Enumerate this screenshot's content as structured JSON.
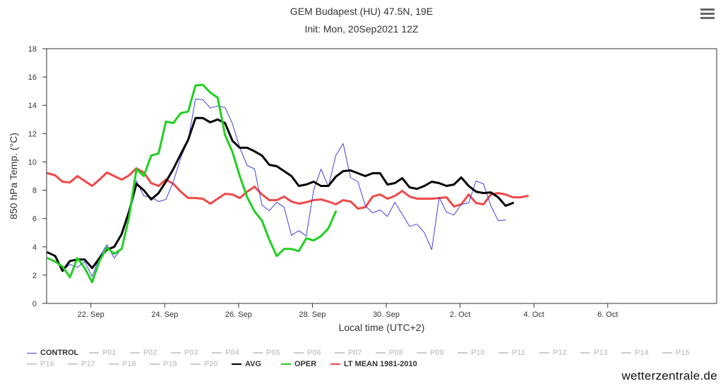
{
  "header": {
    "title": "GEM Budapest (HU) 47.5N, 19E",
    "subtitle": "Init: Mon, 20Sep2021 12Z",
    "menu_icon": "hamburger-menu-icon"
  },
  "credit": "wetterzentrale.de",
  "chart_data": {
    "type": "line",
    "title": "GEM Budapest (HU) 47.5N, 19E",
    "subtitle": "Init: Mon, 20Sep2021 12Z",
    "xlabel": "Local time (UTC+2)",
    "ylabel": "850 hPa Temp. (°C)",
    "ylim": [
      0,
      18
    ],
    "yticks": [
      "0",
      "2",
      "4",
      "6",
      "8",
      "10",
      "12",
      "14",
      "16",
      "18"
    ],
    "xlim": [
      -1.2,
      16.95
    ],
    "xticks": [
      {
        "x": 0,
        "label": "22. Sep"
      },
      {
        "x": 2,
        "label": "24. Sep"
      },
      {
        "x": 4,
        "label": "26. Sep"
      },
      {
        "x": 6,
        "label": "28. Sep"
      },
      {
        "x": 8,
        "label": "30. Sep"
      },
      {
        "x": 10,
        "label": "2. Oct"
      },
      {
        "x": 12,
        "label": "4. Oct"
      },
      {
        "x": 14,
        "label": "6. Oct"
      }
    ],
    "x_start": -1.167,
    "x_step": 0.2,
    "series": [
      {
        "name": "LT MEAN 1981-2010",
        "color": "#f04848",
        "width": 3,
        "values": [
          9.2,
          9.05,
          8.6,
          8.55,
          9.0,
          8.65,
          8.3,
          8.75,
          9.25,
          9.0,
          8.75,
          9.05,
          9.55,
          9.25,
          8.5,
          8.3,
          8.75,
          8.45,
          7.9,
          7.45,
          7.45,
          7.4,
          7.05,
          7.4,
          7.75,
          7.7,
          7.45,
          7.9,
          8.25,
          7.7,
          7.3,
          7.3,
          7.55,
          7.2,
          7.05,
          7.15,
          7.3,
          7.35,
          7.2,
          7.0,
          7.3,
          7.2,
          6.7,
          6.8,
          7.55,
          7.7,
          7.4,
          7.6,
          7.95,
          7.55,
          7.4,
          7.4,
          7.4,
          7.45,
          7.5,
          6.85,
          7.0,
          7.7,
          7.1,
          7.0,
          7.7,
          7.8,
          7.7,
          7.5,
          7.5,
          7.6
        ]
      },
      {
        "name": "CONTROL",
        "color": "#4040e0",
        "width": 1,
        "values": [
          3.55,
          3.4,
          2.35,
          2.75,
          2.55,
          2.95,
          1.9,
          3.3,
          4.15,
          3.2,
          3.9,
          6.0,
          8.65,
          7.6,
          7.5,
          7.2,
          7.35,
          8.6,
          10.3,
          11.5,
          14.45,
          14.4,
          13.8,
          13.95,
          13.85,
          12.7,
          11.0,
          9.75,
          9.5,
          6.95,
          6.55,
          7.15,
          6.8,
          4.8,
          5.15,
          4.75,
          8.0,
          9.5,
          8.25,
          10.45,
          11.3,
          8.9,
          8.6,
          6.9,
          6.4,
          6.6,
          6.15,
          7.15,
          6.3,
          5.45,
          5.6,
          5.0,
          3.8,
          7.5,
          6.45,
          6.25,
          7.0,
          7.1,
          8.65,
          8.45,
          6.9,
          5.85,
          5.9
        ]
      },
      {
        "name": "AVG",
        "color": "#000000",
        "width": 3,
        "values": [
          3.6,
          3.35,
          2.3,
          3.0,
          3.1,
          3.1,
          2.5,
          3.2,
          3.8,
          4.0,
          4.9,
          6.5,
          8.45,
          8.0,
          7.35,
          7.8,
          8.6,
          9.5,
          10.55,
          11.55,
          13.1,
          13.1,
          12.8,
          13.0,
          12.75,
          11.5,
          11.0,
          11.0,
          10.75,
          10.45,
          9.8,
          9.7,
          9.35,
          9.0,
          8.3,
          8.4,
          8.6,
          8.3,
          8.3,
          8.95,
          9.35,
          9.4,
          9.2,
          9.0,
          9.2,
          9.2,
          8.4,
          8.5,
          8.85,
          8.2,
          8.1,
          8.3,
          8.6,
          8.5,
          8.3,
          8.4,
          8.9,
          8.3,
          7.9,
          7.8,
          7.85,
          7.5,
          6.9,
          7.1
        ]
      },
      {
        "name": "OPER",
        "color": "#20d020",
        "width": 3,
        "values": [
          3.2,
          2.95,
          2.6,
          1.85,
          3.2,
          2.5,
          1.5,
          3.0,
          3.95,
          3.5,
          3.85,
          6.1,
          9.5,
          9.0,
          10.45,
          10.6,
          12.85,
          12.75,
          13.45,
          13.55,
          15.4,
          15.45,
          14.9,
          14.55,
          11.9,
          10.7,
          9.0,
          7.5,
          6.5,
          5.85,
          4.5,
          3.35,
          3.85,
          3.85,
          3.7,
          4.6,
          4.45,
          4.75,
          5.3,
          6.5
        ]
      }
    ],
    "legend": {
      "placement": "bottom",
      "entries": [
        {
          "label": "CONTROL",
          "color": "#4040e0",
          "active": true
        },
        {
          "label": "P01",
          "color": "#cccccc",
          "active": false
        },
        {
          "label": "P02",
          "color": "#cccccc",
          "active": false
        },
        {
          "label": "P03",
          "color": "#cccccc",
          "active": false
        },
        {
          "label": "P04",
          "color": "#cccccc",
          "active": false
        },
        {
          "label": "P05",
          "color": "#cccccc",
          "active": false
        },
        {
          "label": "P06",
          "color": "#cccccc",
          "active": false
        },
        {
          "label": "P07",
          "color": "#cccccc",
          "active": false
        },
        {
          "label": "P08",
          "color": "#cccccc",
          "active": false
        },
        {
          "label": "P09",
          "color": "#cccccc",
          "active": false
        },
        {
          "label": "P10",
          "color": "#cccccc",
          "active": false
        },
        {
          "label": "P11",
          "color": "#cccccc",
          "active": false
        },
        {
          "label": "P12",
          "color": "#cccccc",
          "active": false
        },
        {
          "label": "P13",
          "color": "#cccccc",
          "active": false
        },
        {
          "label": "P14",
          "color": "#cccccc",
          "active": false
        },
        {
          "label": "P15",
          "color": "#cccccc",
          "active": false
        },
        {
          "label": "P16",
          "color": "#cccccc",
          "active": false
        },
        {
          "label": "P17",
          "color": "#cccccc",
          "active": false
        },
        {
          "label": "P18",
          "color": "#cccccc",
          "active": false
        },
        {
          "label": "P19",
          "color": "#cccccc",
          "active": false
        },
        {
          "label": "P20",
          "color": "#cccccc",
          "active": false
        },
        {
          "label": "AVG",
          "color": "#000000",
          "active": true
        },
        {
          "label": "OPER",
          "color": "#20d020",
          "active": true
        },
        {
          "label": "LT MEAN 1981-2010",
          "color": "#f04848",
          "active": true
        }
      ]
    }
  }
}
